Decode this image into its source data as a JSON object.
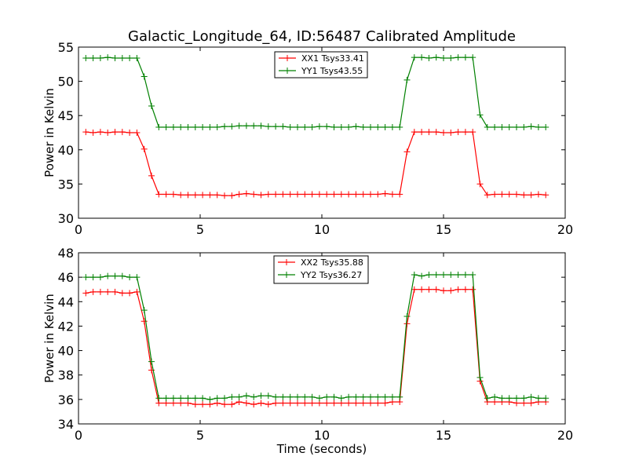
{
  "figure_title": "Galactic_Longitude_64, ID:56487 Calibrated Amplitude",
  "colors": {
    "xx": "#ff0000",
    "yy": "#008000"
  },
  "chart_data": [
    {
      "type": "line",
      "title": "Galactic_Longitude_64, ID:56487 Calibrated Amplitude",
      "xlabel": "",
      "ylabel": "Power in Kelvin",
      "xlim": [
        0,
        20
      ],
      "ylim": [
        30,
        55
      ],
      "xticks": [
        0,
        5,
        10,
        15,
        20
      ],
      "yticks": [
        30,
        35,
        40,
        45,
        50,
        55
      ],
      "legend_position": "top-center",
      "x": [
        0.3,
        0.6,
        0.9,
        1.2,
        1.5,
        1.8,
        2.1,
        2.4,
        2.7,
        3.0,
        3.3,
        3.6,
        3.9,
        4.2,
        4.5,
        4.8,
        5.1,
        5.4,
        5.7,
        6.0,
        6.3,
        6.6,
        6.9,
        7.2,
        7.5,
        7.8,
        8.1,
        8.4,
        8.7,
        9.0,
        9.3,
        9.6,
        9.9,
        10.2,
        10.5,
        10.8,
        11.1,
        11.4,
        11.7,
        12.0,
        12.3,
        12.6,
        12.9,
        13.2,
        13.5,
        13.8,
        14.1,
        14.4,
        14.7,
        15.0,
        15.3,
        15.6,
        15.9,
        16.2,
        16.5,
        16.8,
        17.1,
        17.4,
        17.7,
        18.0,
        18.3,
        18.6,
        18.9,
        19.2
      ],
      "series": [
        {
          "name": "XX1 Tsys33.41",
          "color": "#ff0000",
          "values": [
            42.6,
            42.5,
            42.6,
            42.5,
            42.6,
            42.6,
            42.5,
            42.5,
            40.1,
            36.2,
            33.5,
            33.5,
            33.5,
            33.4,
            33.4,
            33.4,
            33.4,
            33.4,
            33.4,
            33.3,
            33.3,
            33.5,
            33.6,
            33.5,
            33.4,
            33.5,
            33.5,
            33.5,
            33.5,
            33.5,
            33.5,
            33.5,
            33.5,
            33.5,
            33.5,
            33.5,
            33.5,
            33.5,
            33.5,
            33.5,
            33.5,
            33.6,
            33.5,
            33.5,
            39.7,
            42.6,
            42.6,
            42.6,
            42.6,
            42.5,
            42.5,
            42.6,
            42.6,
            42.6,
            35.0,
            33.4,
            33.5,
            33.5,
            33.5,
            33.5,
            33.4,
            33.4,
            33.5,
            33.4
          ]
        },
        {
          "name": "YY1 Tsys43.55",
          "color": "#008000",
          "values": [
            53.4,
            53.4,
            53.4,
            53.5,
            53.4,
            53.4,
            53.4,
            53.4,
            50.7,
            46.4,
            43.3,
            43.3,
            43.3,
            43.3,
            43.3,
            43.3,
            43.3,
            43.3,
            43.3,
            43.4,
            43.4,
            43.5,
            43.5,
            43.5,
            43.5,
            43.4,
            43.4,
            43.4,
            43.3,
            43.3,
            43.3,
            43.3,
            43.4,
            43.4,
            43.3,
            43.3,
            43.3,
            43.4,
            43.3,
            43.3,
            43.3,
            43.3,
            43.3,
            43.3,
            50.2,
            53.5,
            53.5,
            53.4,
            53.5,
            53.4,
            53.4,
            53.5,
            53.5,
            53.5,
            45.1,
            43.3,
            43.3,
            43.3,
            43.3,
            43.3,
            43.3,
            43.4,
            43.3,
            43.3
          ]
        }
      ]
    },
    {
      "type": "line",
      "title": "",
      "xlabel": "Time (seconds)",
      "ylabel": "Power in Kelvin",
      "xlim": [
        0,
        20
      ],
      "ylim": [
        34,
        48
      ],
      "xticks": [
        0,
        5,
        10,
        15,
        20
      ],
      "yticks": [
        34,
        36,
        38,
        40,
        42,
        44,
        46,
        48
      ],
      "legend_position": "top-center",
      "x": [
        0.3,
        0.6,
        0.9,
        1.2,
        1.5,
        1.8,
        2.1,
        2.4,
        2.7,
        3.0,
        3.3,
        3.6,
        3.9,
        4.2,
        4.5,
        4.8,
        5.1,
        5.4,
        5.7,
        6.0,
        6.3,
        6.6,
        6.9,
        7.2,
        7.5,
        7.8,
        8.1,
        8.4,
        8.7,
        9.0,
        9.3,
        9.6,
        9.9,
        10.2,
        10.5,
        10.8,
        11.1,
        11.4,
        11.7,
        12.0,
        12.3,
        12.6,
        12.9,
        13.2,
        13.5,
        13.8,
        14.1,
        14.4,
        14.7,
        15.0,
        15.3,
        15.6,
        15.9,
        16.2,
        16.5,
        16.8,
        17.1,
        17.4,
        17.7,
        18.0,
        18.3,
        18.6,
        18.9,
        19.2
      ],
      "series": [
        {
          "name": "XX2 Tsys35.88",
          "color": "#ff0000",
          "values": [
            44.7,
            44.8,
            44.8,
            44.8,
            44.8,
            44.7,
            44.7,
            44.8,
            42.4,
            38.4,
            35.7,
            35.7,
            35.7,
            35.7,
            35.7,
            35.6,
            35.6,
            35.6,
            35.7,
            35.6,
            35.6,
            35.8,
            35.7,
            35.6,
            35.7,
            35.6,
            35.7,
            35.7,
            35.7,
            35.7,
            35.7,
            35.7,
            35.7,
            35.7,
            35.7,
            35.7,
            35.7,
            35.7,
            35.7,
            35.7,
            35.7,
            35.7,
            35.8,
            35.8,
            42.2,
            45.0,
            45.0,
            45.0,
            45.0,
            44.9,
            44.9,
            45.0,
            45.0,
            45.0,
            37.5,
            35.8,
            35.8,
            35.8,
            35.8,
            35.7,
            35.7,
            35.7,
            35.8,
            35.8
          ]
        },
        {
          "name": "YY2 Tsys36.27",
          "color": "#008000",
          "values": [
            46.0,
            46.0,
            46.0,
            46.1,
            46.1,
            46.1,
            46.0,
            46.0,
            43.3,
            39.1,
            36.1,
            36.1,
            36.1,
            36.1,
            36.1,
            36.1,
            36.1,
            36.0,
            36.1,
            36.1,
            36.2,
            36.2,
            36.3,
            36.2,
            36.3,
            36.3,
            36.2,
            36.2,
            36.2,
            36.2,
            36.2,
            36.2,
            36.1,
            36.2,
            36.2,
            36.1,
            36.2,
            36.2,
            36.2,
            36.2,
            36.2,
            36.2,
            36.2,
            36.2,
            42.8,
            46.2,
            46.1,
            46.2,
            46.2,
            46.2,
            46.2,
            46.2,
            46.2,
            46.2,
            37.8,
            36.1,
            36.2,
            36.1,
            36.1,
            36.1,
            36.1,
            36.2,
            36.1,
            36.1
          ]
        }
      ]
    }
  ]
}
